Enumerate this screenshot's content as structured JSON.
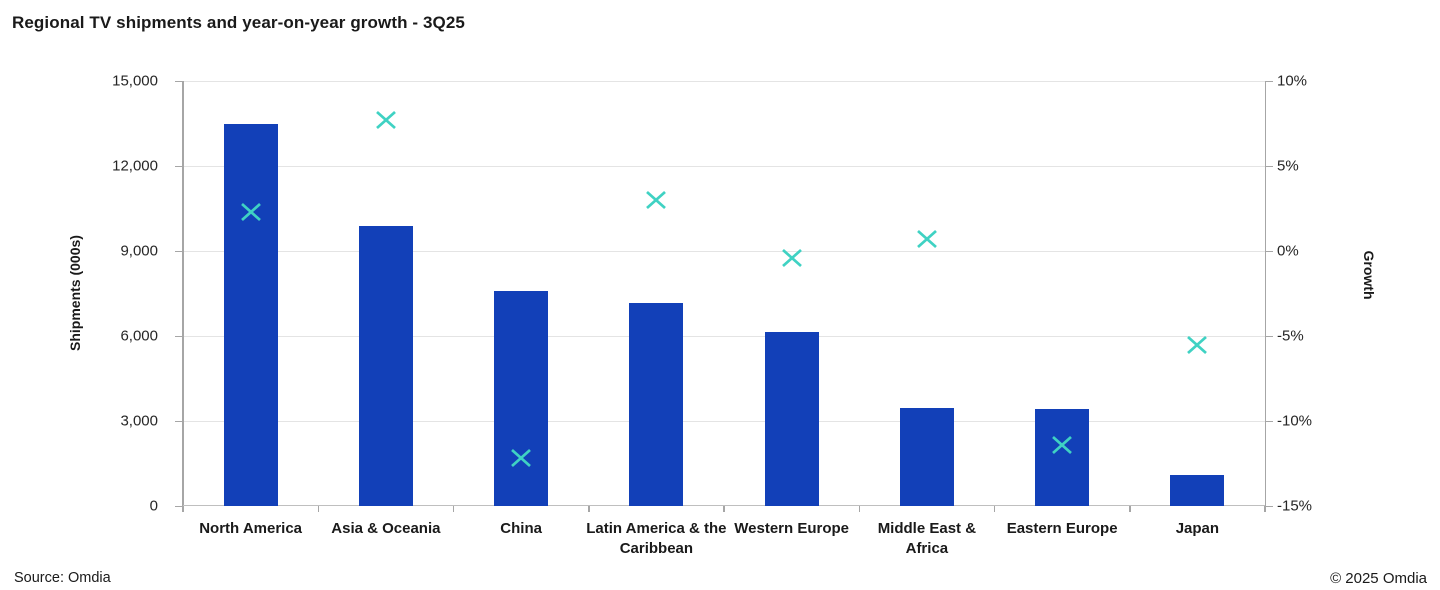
{
  "page": {
    "title": "Regional TV shipments and year-on-year growth - 3Q25",
    "source_note": "Source: Omdia",
    "copyright_note": "© 2025 Omdia"
  },
  "colors": {
    "bar": "#1240b8",
    "marker": "#3fd2c3",
    "gridline": "#e4e4e4",
    "axis_line": "#a6a6a6",
    "text": "#1a1a1a"
  },
  "icons": {
    "growth_marker": "x-marker"
  },
  "chart_data": {
    "type": "bar",
    "subtype": "combo-bar-with-scatter-x-markers",
    "title": "Regional TV shipments and year-on-year growth - 3Q25",
    "grid": true,
    "legend_position": "none",
    "categories": [
      {
        "label": "North America",
        "lines": [
          "North America"
        ]
      },
      {
        "label": "Asia & Oceania",
        "lines": [
          "Asia & Oceania"
        ]
      },
      {
        "label": "China",
        "lines": [
          "China"
        ]
      },
      {
        "label": "Latin America & the Caribbean",
        "lines": [
          "Latin America & the",
          "Caribbean"
        ]
      },
      {
        "label": "Western Europe",
        "lines": [
          "Western Europe"
        ]
      },
      {
        "label": "Middle East & Africa",
        "lines": [
          "Middle East &",
          "Africa"
        ]
      },
      {
        "label": "Eastern Europe",
        "lines": [
          "Eastern Europe"
        ]
      },
      {
        "label": "Japan",
        "lines": [
          "Japan"
        ]
      }
    ],
    "series": [
      {
        "name": "Shipments (000s)",
        "type": "bar",
        "axis": "left",
        "values": [
          13500,
          9900,
          7600,
          7150,
          6150,
          3470,
          3420,
          1090
        ]
      },
      {
        "name": "Growth",
        "type": "scatter",
        "marker": "x",
        "axis": "right",
        "unit": "%",
        "values": [
          2.3,
          7.7,
          -12.2,
          3.0,
          -0.4,
          0.7,
          -11.4,
          -5.5
        ]
      }
    ],
    "left_axis": {
      "title": "Shipments (000s)",
      "min": 0,
      "max": 15000,
      "tick_step": 3000,
      "tick_labels": [
        "0",
        "3,000",
        "6,000",
        "9,000",
        "12,000",
        "15,000"
      ]
    },
    "right_axis": {
      "title": "Growth",
      "min": -15,
      "max": 10,
      "tick_step": 5,
      "tick_labels": [
        "-15%",
        "-10%",
        "-5%",
        "0%",
        "5%",
        "10%"
      ]
    }
  }
}
